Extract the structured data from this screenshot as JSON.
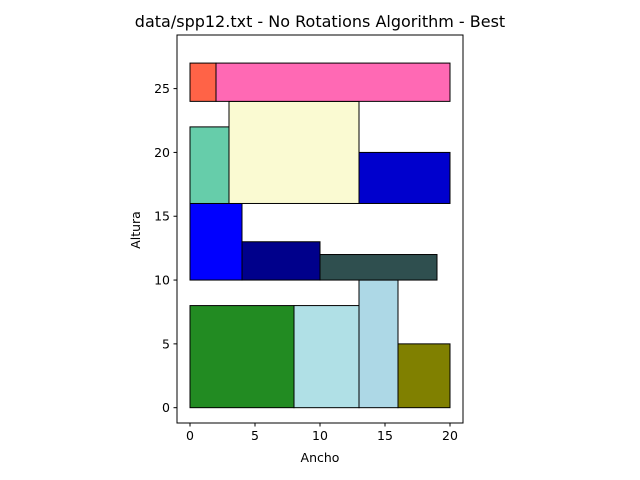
{
  "chart_data": {
    "type": "rectangle-packing",
    "title": "data/spp12.txt - No Rotations Algorithm - Best",
    "xlabel": "Ancho",
    "ylabel": "Altura",
    "xlim": [
      -1,
      21
    ],
    "ylim": [
      -1.2,
      29.2
    ],
    "x_ticks": [
      0,
      5,
      10,
      15,
      20
    ],
    "y_ticks": [
      0,
      5,
      10,
      15,
      20,
      25
    ],
    "grid": false,
    "rectangles": [
      {
        "x": 0,
        "y": 0,
        "w": 8,
        "h": 8,
        "color": "#228b22"
      },
      {
        "x": 8,
        "y": 0,
        "w": 5,
        "h": 8,
        "color": "#b0e0e6"
      },
      {
        "x": 13,
        "y": 0,
        "w": 3,
        "h": 10,
        "color": "#add8e6"
      },
      {
        "x": 16,
        "y": 0,
        "w": 4,
        "h": 5,
        "color": "#808000"
      },
      {
        "x": 0,
        "y": 10,
        "w": 4,
        "h": 6,
        "color": "#0000ff"
      },
      {
        "x": 4,
        "y": 10,
        "w": 6,
        "h": 3,
        "color": "#00008b"
      },
      {
        "x": 10,
        "y": 10,
        "w": 9,
        "h": 2,
        "color": "#2f4f4f"
      },
      {
        "x": 0,
        "y": 16,
        "w": 3,
        "h": 6,
        "color": "#66cdaa"
      },
      {
        "x": 3,
        "y": 16,
        "w": 10,
        "h": 8,
        "color": "#fafad2"
      },
      {
        "x": 13,
        "y": 16,
        "w": 7,
        "h": 4,
        "color": "#0000cd"
      },
      {
        "x": 0,
        "y": 24,
        "w": 2,
        "h": 3,
        "color": "#ff6347"
      },
      {
        "x": 2,
        "y": 24,
        "w": 18,
        "h": 3,
        "color": "#ff69b4"
      }
    ]
  }
}
